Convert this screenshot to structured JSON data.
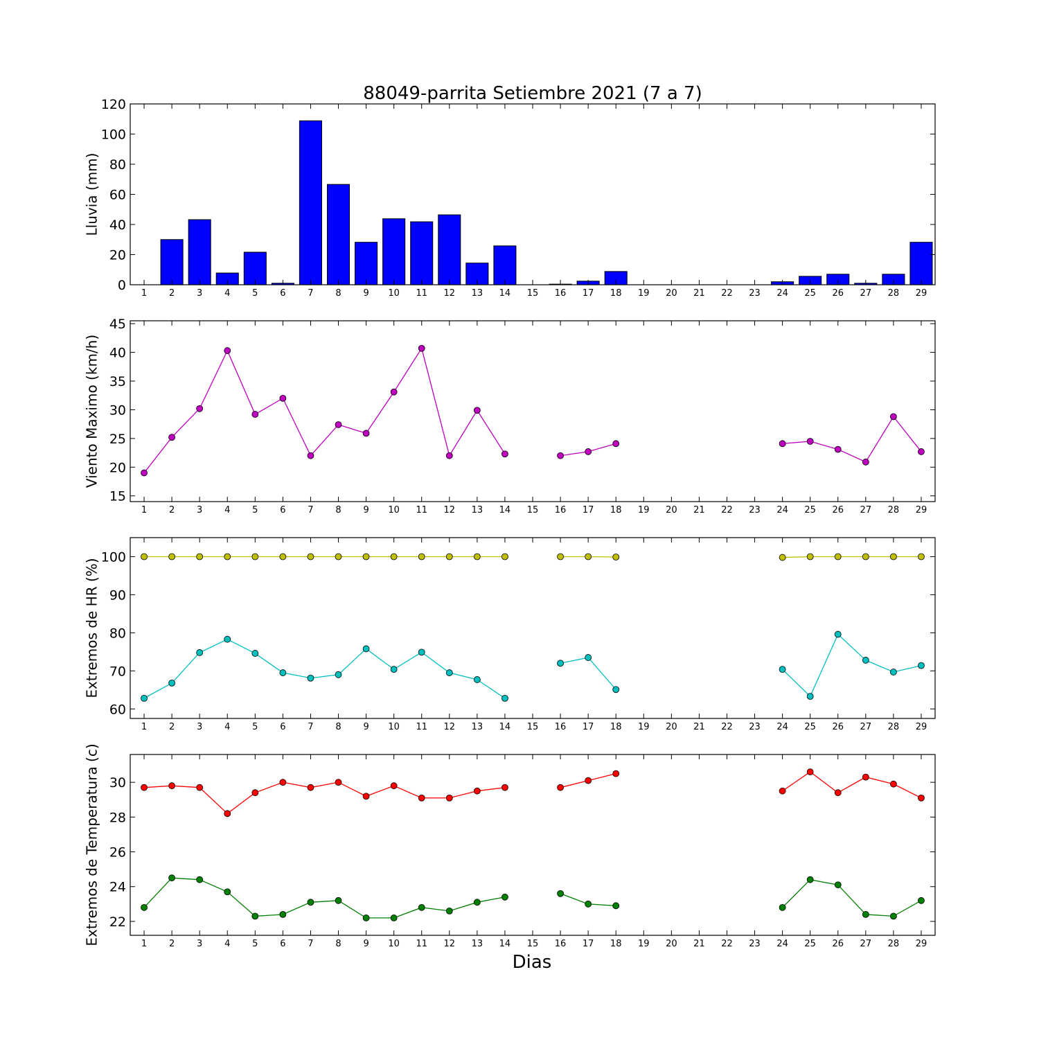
{
  "title": "88049-parrita Setiembre 2021  (7 a 7)",
  "xlabel": "Dias",
  "chart_data": [
    {
      "type": "bar",
      "ylabel": "Lluvia (mm)",
      "ylim": [
        0,
        120
      ],
      "yticks": [
        0,
        20,
        40,
        60,
        80,
        100,
        120
      ],
      "x": [
        1,
        2,
        3,
        4,
        5,
        6,
        7,
        8,
        9,
        10,
        11,
        12,
        13,
        14,
        15,
        16,
        17,
        18,
        19,
        20,
        21,
        22,
        23,
        24,
        25,
        26,
        27,
        28,
        29
      ],
      "bar_color": "#0000ff",
      "series": [
        {
          "values": [
            0,
            30,
            43.2,
            7.8,
            21.6,
            1,
            108.8,
            66.6,
            28.2,
            43.8,
            41.8,
            46.4,
            14.4,
            25.8,
            0,
            0.4,
            2.4,
            8.8,
            0,
            0,
            0,
            0,
            0,
            2,
            5.6,
            7,
            1,
            7,
            28.2
          ]
        }
      ]
    },
    {
      "type": "line",
      "ylabel": "Viento Maximo (km/h)",
      "ylim": [
        14,
        45.5
      ],
      "yticks": [
        15,
        20,
        25,
        30,
        35,
        40,
        45
      ],
      "x": [
        1,
        2,
        3,
        4,
        5,
        6,
        7,
        8,
        9,
        10,
        11,
        12,
        13,
        14,
        15,
        16,
        17,
        18,
        19,
        20,
        21,
        22,
        23,
        24,
        25,
        26,
        27,
        28,
        29
      ],
      "series": [
        {
          "color": "#bf00bf",
          "values": [
            19.0,
            25.2,
            30.2,
            40.3,
            29.2,
            32.0,
            22.0,
            27.4,
            25.9,
            33.1,
            40.7,
            22.0,
            29.9,
            22.3,
            null,
            22.0,
            22.7,
            24.1,
            null,
            null,
            null,
            null,
            null,
            24.1,
            24.5,
            23.1,
            20.9,
            28.8,
            22.7
          ]
        }
      ]
    },
    {
      "type": "line",
      "ylabel": "Extremos de HR (%)",
      "ylim": [
        57.5,
        105
      ],
      "yticks": [
        60,
        70,
        80,
        90,
        100
      ],
      "x": [
        1,
        2,
        3,
        4,
        5,
        6,
        7,
        8,
        9,
        10,
        11,
        12,
        13,
        14,
        15,
        16,
        17,
        18,
        19,
        20,
        21,
        22,
        23,
        24,
        25,
        26,
        27,
        28,
        29
      ],
      "series": [
        {
          "color": "#bfbf00",
          "values": [
            100,
            100,
            100,
            100,
            100,
            100,
            100,
            100,
            100,
            100,
            100,
            100,
            100,
            100,
            null,
            100,
            100,
            99.9,
            null,
            null,
            null,
            null,
            null,
            99.8,
            100,
            100,
            100,
            100,
            100
          ]
        },
        {
          "color": "#00bfbf",
          "values": [
            62.8,
            66.8,
            74.8,
            78.3,
            74.6,
            69.5,
            68.1,
            69.0,
            75.8,
            70.4,
            74.9,
            69.5,
            67.7,
            62.8,
            null,
            72.0,
            73.5,
            65.1,
            null,
            null,
            null,
            null,
            null,
            70.4,
            63.3,
            79.6,
            72.8,
            69.7,
            71.4
          ]
        }
      ]
    },
    {
      "type": "line",
      "ylabel": "Extremos de Temperatura (c)",
      "ylim": [
        21.2,
        31.6
      ],
      "yticks": [
        22,
        24,
        26,
        28,
        30
      ],
      "x": [
        1,
        2,
        3,
        4,
        5,
        6,
        7,
        8,
        9,
        10,
        11,
        12,
        13,
        14,
        15,
        16,
        17,
        18,
        19,
        20,
        21,
        22,
        23,
        24,
        25,
        26,
        27,
        28,
        29
      ],
      "series": [
        {
          "color": "#ff0000",
          "values": [
            29.7,
            29.8,
            29.7,
            28.2,
            29.4,
            30.0,
            29.7,
            30.0,
            29.2,
            29.8,
            29.1,
            29.1,
            29.5,
            29.7,
            null,
            29.7,
            30.1,
            30.5,
            null,
            null,
            null,
            null,
            null,
            29.5,
            30.6,
            29.4,
            30.3,
            29.9,
            29.1
          ]
        },
        {
          "color": "#008000",
          "values": [
            22.8,
            24.5,
            24.4,
            23.7,
            22.3,
            22.4,
            23.1,
            23.2,
            22.2,
            22.2,
            22.8,
            22.6,
            23.1,
            23.4,
            null,
            23.6,
            23.0,
            22.9,
            null,
            null,
            null,
            null,
            null,
            22.8,
            24.4,
            24.1,
            22.4,
            22.3,
            23.2
          ]
        }
      ]
    }
  ]
}
